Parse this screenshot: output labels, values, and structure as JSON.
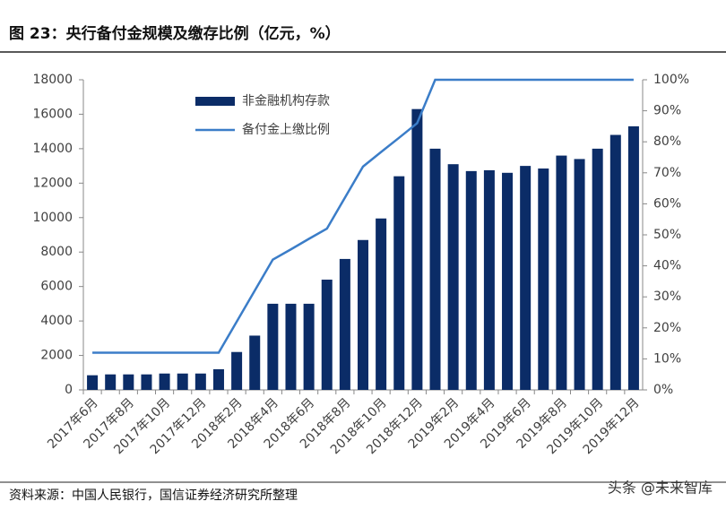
{
  "chart_data": {
    "type": "bar",
    "title": "图 23：央行备付金规模及缴存比例（亿元，%）",
    "source": "资料来源：中国人民银行，国信证券经济研究所整理",
    "watermark": "头条 @未来智库",
    "categories": [
      "2017年6月",
      null,
      "2017年8月",
      null,
      "2017年10月",
      null,
      "2017年12月",
      null,
      "2018年2月",
      null,
      "2018年4月",
      null,
      "2018年6月",
      null,
      "2018年8月",
      null,
      "2018年10月",
      null,
      "2018年12月",
      null,
      "2019年2月",
      null,
      "2019年4月",
      null,
      "2019年6月",
      null,
      "2019年8月",
      null,
      "2019年10月",
      null,
      "2019年12月"
    ],
    "series": [
      {
        "name": "非金融机构存款",
        "type": "bar",
        "color": "#0b2c67",
        "values": [
          850,
          900,
          900,
          900,
          950,
          950,
          950,
          1200,
          2200,
          3150,
          5000,
          5000,
          5000,
          6400,
          7600,
          8700,
          9950,
          12400,
          16300,
          14000,
          13100,
          12700,
          12750,
          12600,
          13000,
          12850,
          13600,
          13400,
          14000,
          14800,
          15300
        ]
      },
      {
        "name": "备付金上缴比例",
        "type": "line",
        "axis": "y2",
        "color": "#3b7dc8",
        "values": [
          12,
          12,
          12,
          12,
          12,
          12,
          12,
          12,
          22,
          32,
          42,
          45.3,
          48.7,
          52,
          62,
          72,
          76.7,
          81.3,
          86,
          100,
          100,
          100,
          100,
          100,
          100,
          100,
          100,
          100,
          100,
          100,
          100
        ]
      }
    ],
    "ylim": [
      0,
      18000
    ],
    "yticks": [
      0,
      2000,
      4000,
      6000,
      8000,
      10000,
      12000,
      14000,
      16000,
      18000
    ],
    "y2lim": [
      0,
      100
    ],
    "y2ticks": [
      {
        "value": 0,
        "label": "0%"
      },
      {
        "value": 10,
        "label": "10%"
      },
      {
        "value": 20,
        "label": "20%"
      },
      {
        "value": 30,
        "label": "30%"
      },
      {
        "value": 40,
        "label": "40%"
      },
      {
        "value": 50,
        "label": "50%"
      },
      {
        "value": 60,
        "label": "60%"
      },
      {
        "value": 70,
        "label": "70%"
      },
      {
        "value": 80,
        "label": "80%"
      },
      {
        "value": 90,
        "label": "90%"
      },
      {
        "value": 100,
        "label": "100%"
      }
    ],
    "legend": "top-left"
  }
}
